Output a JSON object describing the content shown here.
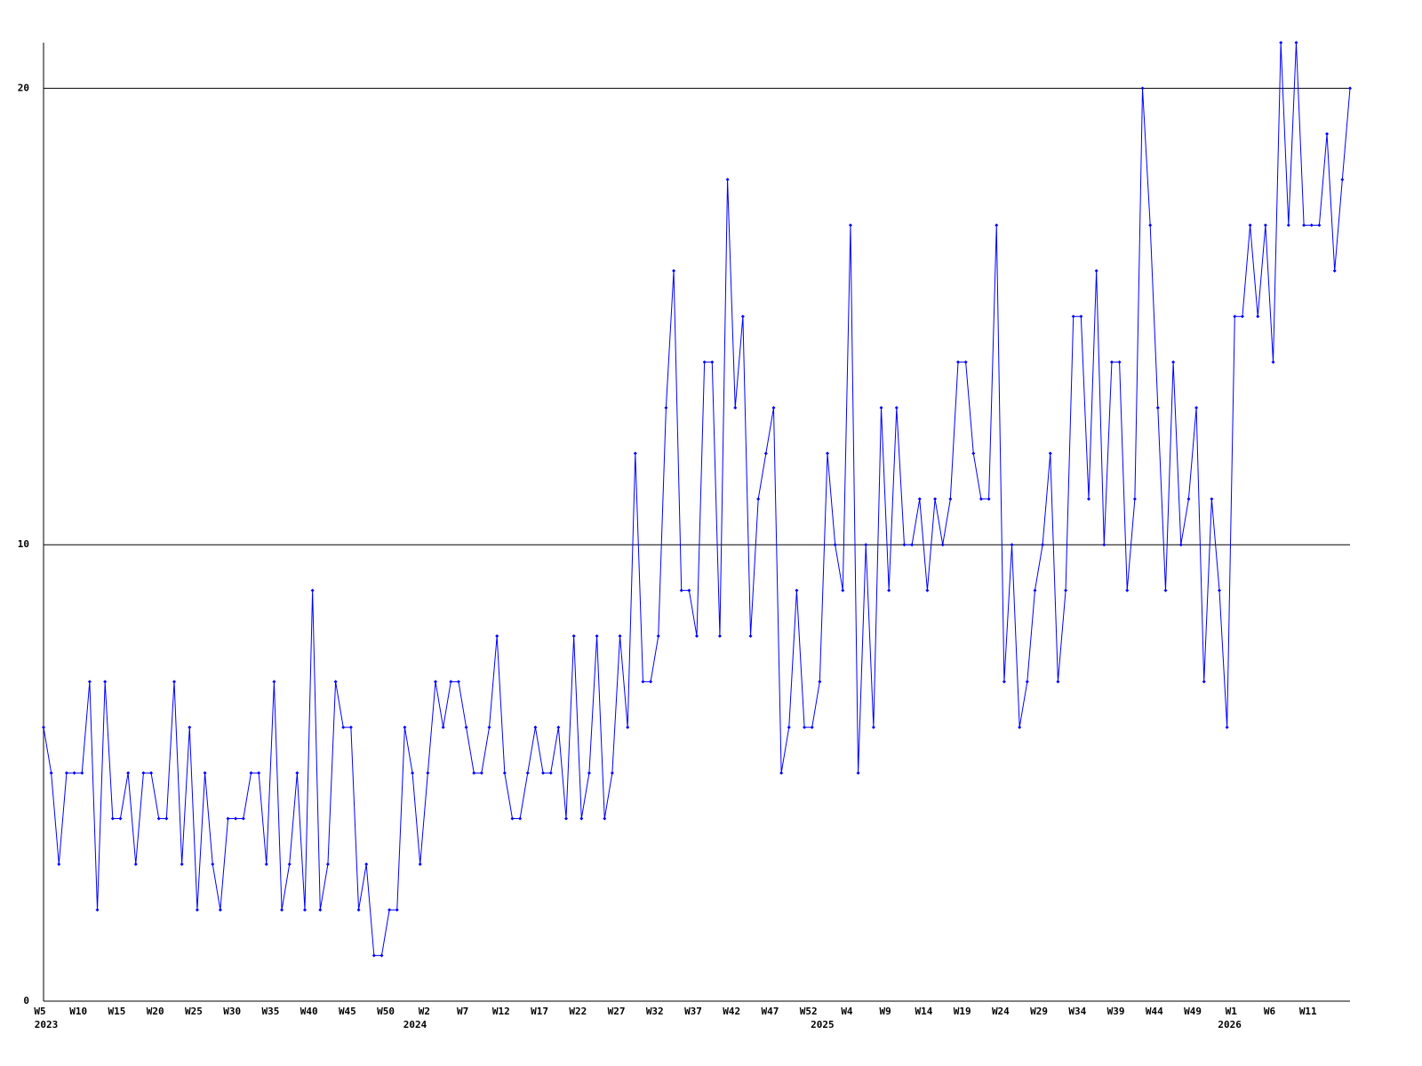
{
  "chart_data": {
    "type": "line",
    "color": "#0000ff",
    "ylim": [
      0,
      21
    ],
    "yticks": [
      0,
      10,
      20
    ],
    "grid": true,
    "categories": [
      "W5",
      null,
      null,
      null,
      null,
      "W10",
      null,
      null,
      null,
      null,
      "W15",
      null,
      null,
      null,
      null,
      "W20",
      null,
      null,
      null,
      null,
      "W25",
      null,
      null,
      null,
      null,
      "W30",
      null,
      null,
      null,
      null,
      "W35",
      null,
      null,
      null,
      null,
      "W40",
      null,
      null,
      null,
      null,
      "W45",
      null,
      null,
      null,
      null,
      "W50",
      null,
      null,
      null,
      null,
      "W2",
      null,
      null,
      null,
      null,
      "W7",
      null,
      null,
      null,
      null,
      "W12",
      null,
      null,
      null,
      null,
      "W17",
      null,
      null,
      null,
      null,
      "W22",
      null,
      null,
      null,
      null,
      "W27",
      null,
      null,
      null,
      null,
      "W32",
      null,
      null,
      null,
      null,
      "W37",
      null,
      null,
      null,
      null,
      "W42",
      null,
      null,
      null,
      null,
      "W47",
      null,
      null,
      null,
      null,
      "W52",
      null,
      null,
      null,
      null,
      "W4",
      null,
      null,
      null,
      null,
      "W9",
      null,
      null,
      null,
      null,
      "W14",
      null,
      null,
      null,
      null,
      "W19",
      null,
      null,
      null,
      null,
      "W24",
      null,
      null,
      null,
      null,
      "W29",
      null,
      null,
      null,
      null,
      "W34",
      null,
      null,
      null,
      null,
      "W39",
      null,
      null,
      null,
      null,
      "W44",
      null,
      null,
      null,
      null,
      "W49",
      null,
      null,
      null,
      null,
      "W1",
      null,
      null,
      null,
      null,
      "W6",
      null,
      null,
      null,
      null,
      "W11",
      null,
      null,
      null,
      null,
      null
    ],
    "year_categories": [
      "2023",
      null,
      null,
      null,
      null,
      null,
      null,
      null,
      null,
      null,
      null,
      null,
      null,
      null,
      null,
      null,
      null,
      null,
      null,
      null,
      null,
      null,
      null,
      null,
      null,
      null,
      null,
      null,
      null,
      null,
      null,
      null,
      null,
      null,
      null,
      null,
      null,
      null,
      null,
      null,
      null,
      null,
      null,
      null,
      null,
      null,
      null,
      null,
      "2024",
      null,
      null,
      null,
      null,
      null,
      null,
      null,
      null,
      null,
      null,
      null,
      null,
      null,
      null,
      null,
      null,
      null,
      null,
      null,
      null,
      null,
      null,
      null,
      null,
      null,
      null,
      null,
      null,
      null,
      null,
      null,
      null,
      null,
      null,
      null,
      null,
      null,
      null,
      null,
      null,
      null,
      null,
      null,
      null,
      null,
      null,
      null,
      null,
      null,
      null,
      null,
      null,
      "2025",
      null,
      null,
      null,
      null,
      null,
      null,
      null,
      null,
      null,
      null,
      null,
      null,
      null,
      null,
      null,
      null,
      null,
      null,
      null,
      null,
      null,
      null,
      null,
      null,
      null,
      null,
      null,
      null,
      null,
      null,
      null,
      null,
      null,
      null,
      null,
      null,
      null,
      null,
      null,
      null,
      null,
      null,
      null,
      null,
      null,
      null,
      null,
      null,
      null,
      null,
      null,
      null,
      "2026",
      null,
      null,
      null,
      null,
      null,
      null,
      null,
      null,
      null,
      null,
      null,
      null,
      null,
      null,
      null,
      null
    ],
    "values": [
      6,
      5,
      3,
      5,
      5,
      5,
      7,
      2,
      7,
      4,
      4,
      5,
      3,
      5,
      5,
      4,
      4,
      7,
      3,
      6,
      2,
      5,
      3,
      2,
      4,
      4,
      4,
      5,
      5,
      3,
      7,
      2,
      3,
      5,
      2,
      9,
      2,
      3,
      7,
      6,
      6,
      2,
      3,
      1,
      1,
      2,
      2,
      6,
      5,
      3,
      5,
      7,
      6,
      7,
      7,
      6,
      5,
      5,
      6,
      8,
      5,
      4,
      4,
      5,
      6,
      5,
      5,
      6,
      4,
      8,
      4,
      5,
      8,
      4,
      5,
      8,
      6,
      12,
      7,
      7,
      8,
      13,
      16,
      9,
      9,
      8,
      14,
      14,
      8,
      18,
      13,
      15,
      8,
      11,
      12,
      13,
      5,
      6,
      9,
      6,
      6,
      7,
      12,
      10,
      9,
      17,
      5,
      10,
      6,
      13,
      9,
      13,
      10,
      10,
      11,
      9,
      11,
      10,
      11,
      14,
      14,
      12,
      11,
      11,
      17,
      7,
      10,
      6,
      7,
      9,
      10,
      12,
      7,
      9,
      15,
      15,
      11,
      16,
      10,
      14,
      14,
      9,
      11,
      20,
      17,
      13,
      9,
      14,
      10,
      11,
      13,
      7,
      11,
      9,
      6,
      15,
      15,
      17,
      15,
      17,
      14,
      21,
      17,
      21,
      17,
      17,
      17,
      19,
      16,
      18,
      20
    ]
  }
}
